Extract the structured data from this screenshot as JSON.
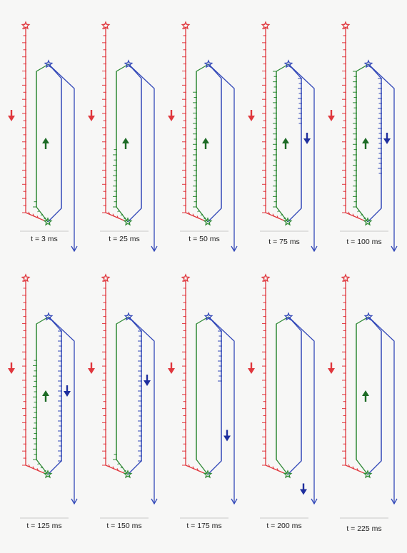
{
  "colors": {
    "red": "#e0373d",
    "green": "#2f8a36",
    "blue": "#3248b8",
    "dark_blue": "#1f2f9e",
    "dark_green": "#1d6b26",
    "label_line": "#c8c8c8"
  },
  "icons": {
    "start": "star-icon",
    "red_arrow": "arrow-down-icon",
    "green_arrow": "arrow-up-icon",
    "blue_arrow": "arrow-down-icon"
  },
  "panels": [
    {
      "label": "t = 3 ms",
      "red": 1.0,
      "green": 0.05,
      "blue": 0.0,
      "blue_arrow": null,
      "green_arrow": true
    },
    {
      "label": "t = 25 ms",
      "red": 1.0,
      "green": 0.45,
      "blue": 0.0,
      "blue_arrow": null,
      "green_arrow": true
    },
    {
      "label": "t = 50 ms",
      "red": 1.0,
      "green": 0.85,
      "blue": 0.0,
      "blue_arrow": null,
      "green_arrow": true
    },
    {
      "label": "t = 75 ms",
      "red": 1.0,
      "green": 1.0,
      "blue": 0.35,
      "blue_arrow": 0.38,
      "green_arrow": true
    },
    {
      "label": "t = 100 ms",
      "red": 1.0,
      "green": 1.0,
      "blue": 0.75,
      "blue_arrow": 0.38,
      "green_arrow": true
    },
    {
      "label": "t = 125 ms",
      "red": 1.0,
      "green": 0.75,
      "blue": 1.0,
      "blue_arrow": 0.38,
      "green_arrow": true
    },
    {
      "label": "t = 150 ms",
      "red": 1.0,
      "green": 0.05,
      "blue": 1.0,
      "blue_arrow": 0.32,
      "green_arrow": false
    },
    {
      "label": "t = 175 ms",
      "red": 1.0,
      "green": 0.0,
      "blue": 0.4,
      "blue_arrow": 0.63,
      "green_arrow": false
    },
    {
      "label": "t = 200 ms",
      "red": 1.0,
      "green": 0.0,
      "blue": 0.0,
      "blue_arrow": 0.93,
      "green_arrow": false
    },
    {
      "label": "t = 225 ms",
      "red": 1.0,
      "green": 0.0,
      "blue": 0.0,
      "blue_arrow": null,
      "green_arrow": true
    }
  ]
}
